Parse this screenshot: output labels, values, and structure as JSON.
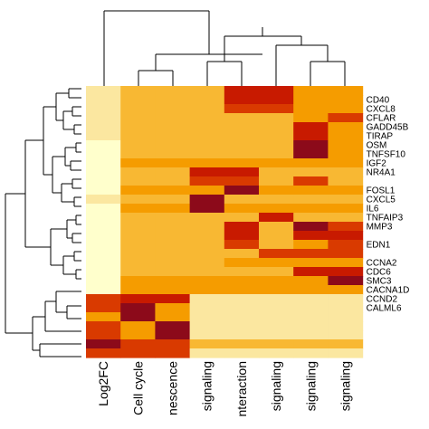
{
  "chart_data": {
    "type": "heatmap",
    "title": "",
    "rows": [
      "CD40",
      "CXCL8",
      "CFLAR",
      "GADD45B",
      "TIRAP",
      "OSM",
      "TNFSF10",
      "IGF2",
      "NR4A1",
      "FOSL1",
      "CXCL5",
      "IL6",
      "TNFAIP3",
      "MMP3",
      "EDN1",
      "CCNA2",
      "CDC6",
      "SMC3",
      "CACNA1D",
      "CCND2",
      "CALML6"
    ],
    "columns": [
      "Log2FC",
      "Cell cycle",
      "nescence",
      "signaling",
      "nteraction",
      "signaling",
      "signaling",
      "signaling"
    ],
    "palette": [
      "#ffffcc",
      "#fbe7a0",
      "#f8b833",
      "#f59c00",
      "#d93a00",
      "#c81a00",
      "#8c0a1a"
    ],
    "levels_note": "values are ordinal color levels 0 (lightest) to 6 (darkest)",
    "subrows": [
      [
        1,
        2,
        2,
        2,
        5,
        5,
        3,
        3
      ],
      [
        1,
        2,
        2,
        2,
        5,
        5,
        3,
        3
      ],
      [
        1,
        2,
        2,
        2,
        4,
        4,
        3,
        3
      ],
      [
        1,
        2,
        2,
        2,
        2,
        2,
        3,
        4
      ],
      [
        1,
        2,
        2,
        2,
        2,
        2,
        5,
        3
      ],
      [
        1,
        2,
        2,
        2,
        2,
        2,
        5,
        3
      ],
      [
        0,
        2,
        2,
        2,
        2,
        2,
        6,
        3
      ],
      [
        0,
        2,
        2,
        2,
        2,
        2,
        6,
        3
      ],
      [
        0,
        3,
        3,
        3,
        3,
        3,
        3,
        3
      ],
      [
        0,
        2,
        2,
        5,
        5,
        2,
        2,
        2
      ],
      [
        0,
        2,
        2,
        4,
        4,
        2,
        4,
        2
      ],
      [
        0,
        3,
        3,
        3,
        6,
        3,
        3,
        3
      ],
      [
        1,
        2,
        2,
        6,
        2,
        2,
        2,
        2
      ],
      [
        0,
        3,
        3,
        6,
        3,
        3,
        3,
        3
      ],
      [
        0,
        2,
        2,
        2,
        2,
        5,
        2,
        2
      ],
      [
        0,
        2,
        2,
        2,
        5,
        2,
        6,
        4
      ],
      [
        0,
        2,
        2,
        2,
        5,
        2,
        5,
        5
      ],
      [
        0,
        2,
        2,
        2,
        4,
        2,
        3,
        4
      ],
      [
        0,
        2,
        2,
        2,
        2,
        4,
        4,
        4
      ],
      [
        0,
        2,
        2,
        2,
        3,
        3,
        3,
        3
      ],
      [
        0,
        2,
        2,
        2,
        2,
        2,
        5,
        5
      ],
      [
        0,
        3,
        3,
        3,
        3,
        3,
        3,
        6
      ],
      [
        0,
        3,
        3,
        3,
        3,
        3,
        3,
        3
      ],
      [
        4,
        5,
        5,
        1,
        1,
        1,
        1,
        1
      ],
      [
        4,
        6,
        3,
        1,
        1,
        1,
        1,
        1
      ],
      [
        3,
        6,
        3,
        1,
        1,
        1,
        1,
        1
      ],
      [
        4,
        3,
        6,
        1,
        1,
        1,
        1,
        1
      ],
      [
        4,
        3,
        6,
        1,
        1,
        1,
        1,
        1
      ],
      [
        6,
        4,
        4,
        2,
        2,
        2,
        2,
        2
      ],
      [
        4,
        4,
        4,
        1,
        1,
        1,
        1,
        1
      ]
    ],
    "label_subrows": [
      1,
      2,
      3,
      4,
      5,
      6,
      7,
      8,
      9,
      11,
      12,
      13,
      14,
      15,
      17,
      19,
      20,
      21,
      22,
      23,
      24
    ]
  }
}
